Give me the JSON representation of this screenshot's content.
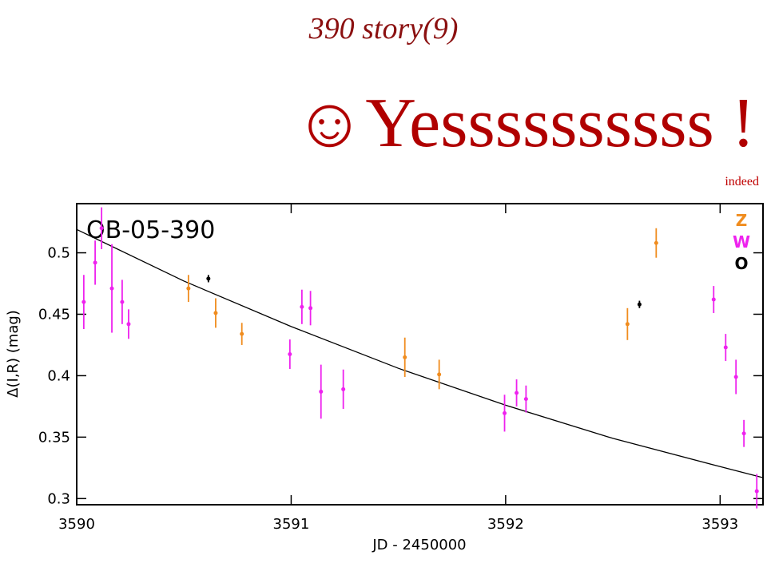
{
  "slide": {
    "title": "390 story(9)",
    "headline": "☺Yessssssssss !",
    "note": "indeed"
  },
  "chart_data": {
    "type": "scatter",
    "annotation": "OB-05-390",
    "x_label": "JD - 2450000",
    "y_label": "Δ(I,R) (mag)",
    "xlim": [
      3590,
      3593.2
    ],
    "xticks": [
      3590,
      3591,
      3592,
      3593
    ],
    "ylim": [
      0.295,
      0.54
    ],
    "yticks": [
      0.3,
      0.35,
      0.4,
      0.45,
      0.5
    ],
    "legend": "upper right",
    "series": [
      {
        "name": "Z",
        "color": "#f08c1e",
        "x": [
          3590.521,
          3590.648,
          3590.77,
          3591.53,
          3591.69,
          3592.568,
          3592.702
        ],
        "values": [
          0.471,
          0.451,
          0.434,
          0.415,
          0.401,
          0.442,
          0.508
        ],
        "errors": [
          0.011,
          0.012,
          0.009,
          0.016,
          0.012,
          0.013,
          0.012
        ]
      },
      {
        "name": "W",
        "color": "#ee22ee",
        "x": [
          3590.033,
          3590.086,
          3590.116,
          3590.164,
          3590.212,
          3590.242,
          3590.994,
          3591.05,
          3591.09,
          3591.139,
          3591.243,
          3591.995,
          3592.051,
          3592.095,
          3592.97,
          3593.026,
          3593.074,
          3593.111,
          3593.171
        ],
        "values": [
          0.46,
          0.492,
          0.52,
          0.471,
          0.46,
          0.442,
          0.4175,
          0.456,
          0.455,
          0.387,
          0.389,
          0.3695,
          0.386,
          0.381,
          0.462,
          0.423,
          0.399,
          0.353,
          0.306
        ],
        "errors": [
          0.022,
          0.018,
          0.017,
          0.036,
          0.018,
          0.012,
          0.012,
          0.014,
          0.014,
          0.022,
          0.016,
          0.015,
          0.011,
          0.011,
          0.011,
          0.011,
          0.014,
          0.011,
          0.014
        ]
      },
      {
        "name": "O",
        "color": "#000000",
        "x": [
          3590.614,
          3592.624
        ],
        "values": [
          0.479,
          0.458
        ],
        "errors": [
          0.003,
          0.003
        ]
      }
    ],
    "fit": {
      "color": "#000000",
      "x": [
        3590,
        3590.5,
        3591,
        3591.5,
        3592,
        3592.5,
        3593,
        3593.2
      ],
      "values": [
        0.519,
        0.477,
        0.44,
        0.406,
        0.376,
        0.349,
        0.326,
        0.317
      ]
    }
  }
}
